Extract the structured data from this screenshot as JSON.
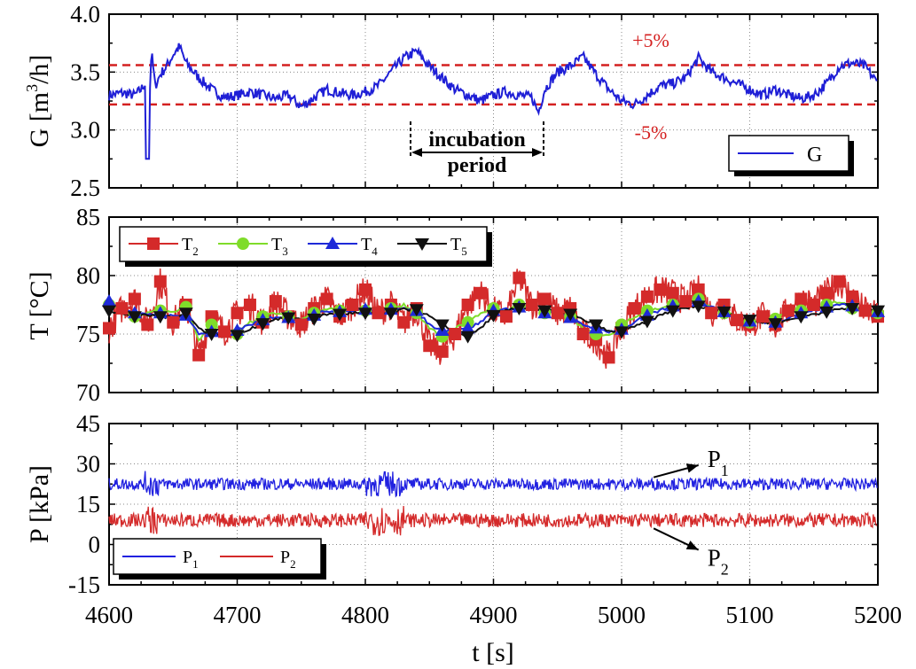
{
  "chart_data": [
    {
      "id": "G",
      "type": "line",
      "ylabel_base": "G [m",
      "ylabel_sup": "3",
      "ylabel_tail": "/h]",
      "xlim": [
        4600,
        5200
      ],
      "ylim": [
        2.5,
        4.0
      ],
      "yticks": [
        "2.5",
        "3.0",
        "3.5",
        "4.0"
      ],
      "grid": true,
      "legend": "lower-right",
      "series": [
        {
          "name": "G",
          "color": "#1f1fd6",
          "x": [
            4600,
            4610,
            4620,
            4625,
            4628,
            4630,
            4633,
            4636,
            4640,
            4645,
            4650,
            4655,
            4660,
            4670,
            4680,
            4690,
            4700,
            4710,
            4720,
            4730,
            4740,
            4750,
            4760,
            4770,
            4780,
            4790,
            4800,
            4810,
            4820,
            4830,
            4840,
            4850,
            4860,
            4870,
            4880,
            4890,
            4900,
            4910,
            4920,
            4930,
            4935,
            4940,
            4950,
            4960,
            4970,
            4980,
            4990,
            5000,
            5010,
            5020,
            5030,
            5040,
            5050,
            5060,
            5070,
            5080,
            5090,
            5100,
            5110,
            5120,
            5130,
            5140,
            5150,
            5160,
            5170,
            5180,
            5190,
            5200
          ],
          "y": [
            3.3,
            3.32,
            3.3,
            3.35,
            3.4,
            2.75,
            3.68,
            3.38,
            3.48,
            3.55,
            3.65,
            3.72,
            3.58,
            3.45,
            3.35,
            3.28,
            3.3,
            3.33,
            3.3,
            3.27,
            3.3,
            3.2,
            3.28,
            3.35,
            3.32,
            3.3,
            3.33,
            3.38,
            3.5,
            3.62,
            3.68,
            3.55,
            3.45,
            3.35,
            3.3,
            3.25,
            3.3,
            3.33,
            3.3,
            3.28,
            3.15,
            3.35,
            3.5,
            3.55,
            3.63,
            3.48,
            3.35,
            3.25,
            3.22,
            3.3,
            3.38,
            3.4,
            3.45,
            3.62,
            3.5,
            3.45,
            3.4,
            3.35,
            3.3,
            3.35,
            3.3,
            3.27,
            3.3,
            3.4,
            3.55,
            3.58,
            3.55,
            3.4
          ]
        }
      ],
      "hlines": [
        {
          "value": 3.56,
          "label": "+5%",
          "color": "#d42020"
        },
        {
          "value": 3.22,
          "label": "-5%",
          "color": "#d42020"
        }
      ],
      "annotation": {
        "line1": "incubation",
        "line2": "period",
        "x_start": 4838,
        "x_end": 4935
      }
    },
    {
      "id": "T",
      "type": "line",
      "ylabel": "T [°C]",
      "xlim": [
        4600,
        5200
      ],
      "ylim": [
        70,
        85
      ],
      "yticks": [
        "70",
        "75",
        "80",
        "85"
      ],
      "grid": true,
      "legend": "top-left",
      "series": [
        {
          "name": "T",
          "sub": "2",
          "color": "#d42a2a",
          "marker": "square",
          "x": [
            4600,
            4610,
            4620,
            4630,
            4640,
            4650,
            4660,
            4670,
            4680,
            4690,
            4700,
            4710,
            4720,
            4730,
            4740,
            4750,
            4760,
            4770,
            4780,
            4790,
            4800,
            4810,
            4820,
            4830,
            4840,
            4850,
            4860,
            4870,
            4880,
            4890,
            4900,
            4910,
            4920,
            4930,
            4940,
            4950,
            4960,
            4970,
            4980,
            4990,
            5000,
            5010,
            5020,
            5030,
            5040,
            5050,
            5060,
            5070,
            5080,
            5090,
            5100,
            5110,
            5120,
            5130,
            5140,
            5150,
            5160,
            5170,
            5180,
            5190,
            5200
          ],
          "y": [
            75.5,
            77.2,
            78.0,
            75.8,
            79.5,
            76.0,
            77.5,
            73.2,
            76.5,
            75.2,
            76.8,
            77.5,
            76.0,
            77.8,
            76.5,
            75.8,
            77.2,
            78.0,
            76.5,
            77.5,
            78.8,
            76.8,
            77.5,
            76.0,
            77.2,
            74.0,
            73.5,
            75.0,
            77.5,
            78.5,
            77.0,
            76.5,
            79.8,
            77.5,
            78.0,
            76.8,
            77.2,
            75.0,
            74.5,
            73.0,
            75.5,
            77.2,
            78.2,
            78.8,
            78.5,
            77.8,
            78.8,
            76.8,
            77.5,
            76.2,
            75.8,
            76.5,
            75.8,
            77.0,
            78.0,
            77.5,
            78.5,
            79.5,
            78.2,
            77.0,
            76.5
          ]
        },
        {
          "name": "T",
          "sub": "3",
          "color": "#7fdc2a",
          "marker": "circle",
          "x": [
            4600,
            4610,
            4620,
            4630,
            4640,
            4650,
            4660,
            4670,
            4680,
            4690,
            4700,
            4710,
            4720,
            4730,
            4740,
            4750,
            4760,
            4770,
            4780,
            4790,
            4800,
            4810,
            4820,
            4830,
            4840,
            4850,
            4860,
            4870,
            4880,
            4890,
            4900,
            4910,
            4920,
            4930,
            4940,
            4950,
            4960,
            4970,
            4980,
            4990,
            5000,
            5010,
            5020,
            5030,
            5040,
            5050,
            5060,
            5070,
            5080,
            5090,
            5100,
            5110,
            5120,
            5130,
            5140,
            5150,
            5160,
            5170,
            5180,
            5190,
            5200
          ],
          "y": [
            77.5,
            77.0,
            76.5,
            76.8,
            77.0,
            76.8,
            77.3,
            74.5,
            75.8,
            75.5,
            75.0,
            76.0,
            76.5,
            76.8,
            76.5,
            76.2,
            76.8,
            77.2,
            77.0,
            77.2,
            77.0,
            76.8,
            77.2,
            77.5,
            76.8,
            75.5,
            74.8,
            75.5,
            76.0,
            76.8,
            77.2,
            77.0,
            77.5,
            77.2,
            76.8,
            77.0,
            76.5,
            75.5,
            75.0,
            74.8,
            75.8,
            76.5,
            77.0,
            77.2,
            77.5,
            77.8,
            78.0,
            77.2,
            76.8,
            76.5,
            76.0,
            76.2,
            76.3,
            76.8,
            77.0,
            77.2,
            77.5,
            77.8,
            77.2,
            77.0,
            76.8
          ]
        },
        {
          "name": "T",
          "sub": "4",
          "color": "#1e2ad8",
          "marker": "triangle-up",
          "x": [
            4600,
            4610,
            4620,
            4630,
            4640,
            4650,
            4660,
            4670,
            4680,
            4690,
            4700,
            4710,
            4720,
            4730,
            4740,
            4750,
            4760,
            4770,
            4780,
            4790,
            4800,
            4810,
            4820,
            4830,
            4840,
            4850,
            4860,
            4870,
            4880,
            4890,
            4900,
            4910,
            4920,
            4930,
            4940,
            4950,
            4960,
            4970,
            4980,
            4990,
            5000,
            5010,
            5020,
            5030,
            5040,
            5050,
            5060,
            5070,
            5080,
            5090,
            5100,
            5110,
            5120,
            5130,
            5140,
            5150,
            5160,
            5170,
            5180,
            5190,
            5200
          ],
          "y": [
            77.8,
            77.2,
            76.8,
            76.6,
            76.8,
            76.5,
            76.6,
            75.0,
            75.2,
            75.0,
            75.3,
            75.8,
            76.2,
            76.5,
            76.4,
            76.2,
            76.6,
            77.0,
            76.9,
            77.0,
            77.1,
            76.9,
            77.1,
            77.3,
            77.0,
            75.8,
            75.3,
            75.5,
            75.5,
            76.0,
            77.0,
            77.1,
            77.3,
            77.2,
            76.8,
            76.8,
            76.4,
            75.8,
            75.5,
            75.2,
            75.4,
            76.0,
            76.6,
            77.0,
            77.4,
            77.6,
            77.8,
            77.3,
            76.9,
            76.5,
            76.1,
            76.0,
            76.0,
            76.4,
            76.8,
            77.0,
            77.3,
            77.6,
            77.4,
            77.1,
            76.9
          ]
        },
        {
          "name": "T",
          "sub": "5",
          "color": "#111111",
          "marker": "triangle-down",
          "x": [
            4600,
            4610,
            4620,
            4630,
            4640,
            4650,
            4660,
            4670,
            4680,
            4690,
            4700,
            4710,
            4720,
            4730,
            4740,
            4750,
            4760,
            4770,
            4780,
            4790,
            4800,
            4810,
            4820,
            4830,
            4840,
            4850,
            4860,
            4870,
            4880,
            4890,
            4900,
            4910,
            4920,
            4930,
            4940,
            4950,
            4960,
            4970,
            4980,
            4990,
            5000,
            5010,
            5020,
            5030,
            5040,
            5050,
            5060,
            5070,
            5080,
            5090,
            5100,
            5110,
            5120,
            5130,
            5140,
            5150,
            5160,
            5170,
            5180,
            5190,
            5200
          ],
          "y": [
            77.0,
            76.7,
            76.5,
            76.6,
            76.5,
            76.4,
            76.8,
            75.5,
            75.0,
            74.8,
            74.9,
            75.4,
            75.9,
            76.3,
            76.4,
            76.2,
            76.3,
            76.7,
            76.7,
            76.8,
            76.8,
            76.7,
            76.8,
            77.1,
            77.1,
            76.5,
            75.8,
            75.2,
            74.8,
            75.5,
            76.6,
            77.0,
            77.2,
            77.2,
            77.0,
            77.0,
            76.7,
            76.2,
            75.8,
            75.2,
            75.2,
            75.6,
            76.1,
            76.6,
            77.0,
            77.2,
            77.4,
            77.2,
            76.9,
            76.5,
            76.2,
            76.0,
            75.9,
            76.2,
            76.5,
            76.7,
            76.9,
            77.1,
            77.2,
            77.1,
            77.0
          ]
        }
      ]
    },
    {
      "id": "P",
      "type": "line",
      "ylabel": "P [kPa]",
      "xlim": [
        4600,
        5200
      ],
      "ylim": [
        -15,
        45
      ],
      "yticks": [
        "-15",
        "0",
        "15",
        "30",
        "45"
      ],
      "xticks": [
        "4600",
        "4700",
        "4800",
        "4900",
        "5000",
        "5100",
        "5200"
      ],
      "xlabel": "t [s]",
      "grid": true,
      "legend": "bottom-left",
      "series": [
        {
          "name": "P",
          "sub": "1",
          "color": "#2121e0",
          "mean": 22.5,
          "amplitude": 2.2
        },
        {
          "name": "P",
          "sub": "2",
          "color": "#d42a2a",
          "mean": 9.0,
          "amplitude": 2.6
        }
      ],
      "annotations": [
        {
          "label": "P",
          "sub": "1",
          "arrow_from_x": 5025,
          "arrow_from_y": 25,
          "arrow_to_x": 5060,
          "arrow_to_y": 29.5
        },
        {
          "label": "P",
          "sub": "2",
          "arrow_from_x": 5025,
          "arrow_from_y": 6.0,
          "arrow_to_x": 5060,
          "arrow_to_y": -2.0
        }
      ]
    }
  ]
}
